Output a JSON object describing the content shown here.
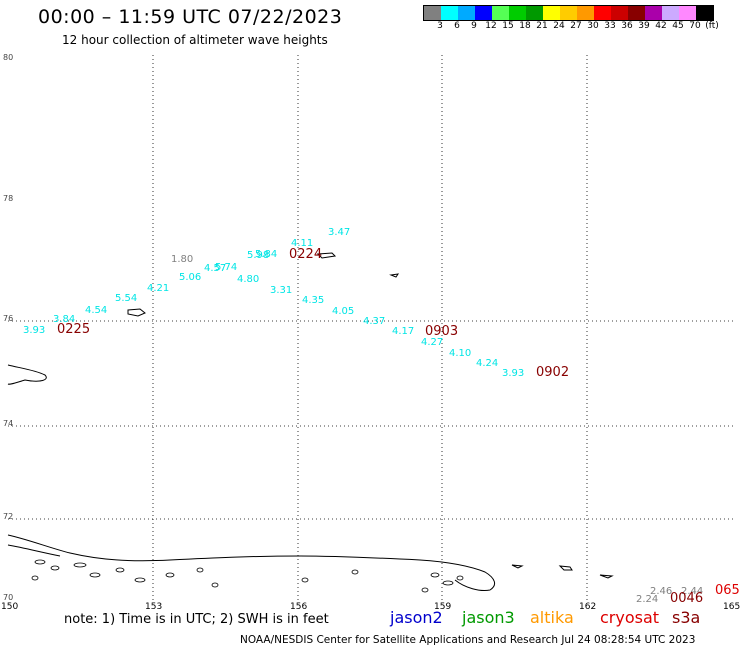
{
  "header": {
    "title": "00:00 – 11:59 UTC 07/22/2023",
    "subtitle": "12 hour collection of altimeter wave heights"
  },
  "colorbar": {
    "colors": [
      "#808080",
      "#00ffff",
      "#00aaff",
      "#0000ff",
      "#55ff55",
      "#00cc00",
      "#009900",
      "#ffff00",
      "#ffcc00",
      "#ff9900",
      "#ff0000",
      "#cc0000",
      "#880000",
      "#aa00aa",
      "#ccaaff",
      "#ff88ff",
      "#000000"
    ],
    "labels": [
      "3",
      "6",
      "9",
      "12",
      "15",
      "18",
      "21",
      "24",
      "27",
      "30",
      "33",
      "36",
      "39",
      "42",
      "45",
      "70",
      "(ft)"
    ]
  },
  "map": {
    "lat_labels": [
      "80",
      "78",
      "76",
      "74",
      "72",
      "70"
    ],
    "lon_labels": [
      "150",
      "153",
      "156",
      "159",
      "162",
      "165"
    ]
  },
  "observations": {
    "cyan_values": [
      {
        "text": "3.47",
        "color": "#00e5e5"
      },
      {
        "text": "4.11",
        "color": "#00e5e5"
      },
      {
        "text": "5.84",
        "color": "#00e5e5"
      },
      {
        "text": "5.98",
        "color": "#00e5e5"
      },
      {
        "text": "5.74",
        "color": "#00e5e5"
      },
      {
        "text": "4.57",
        "color": "#00e5e5"
      },
      {
        "text": "5.06",
        "color": "#00e5e5"
      },
      {
        "text": "4.80",
        "color": "#00e5e5"
      },
      {
        "text": "4.21",
        "color": "#00e5e5"
      },
      {
        "text": "3.31",
        "color": "#00e5e5"
      },
      {
        "text": "5.54",
        "color": "#00e5e5"
      },
      {
        "text": "4.54",
        "color": "#00e5e5"
      },
      {
        "text": "3.84",
        "color": "#00e5e5"
      },
      {
        "text": "3.93",
        "color": "#00e5e5"
      },
      {
        "text": "4.35",
        "color": "#00e5e5"
      },
      {
        "text": "4.05",
        "color": "#00e5e5"
      },
      {
        "text": "4.37",
        "color": "#00e5e5"
      },
      {
        "text": "4.17",
        "color": "#00e5e5"
      },
      {
        "text": "4.27",
        "color": "#00e5e5"
      },
      {
        "text": "4.10",
        "color": "#00e5e5"
      },
      {
        "text": "4.24",
        "color": "#00e5e5"
      },
      {
        "text": "3.93",
        "color": "#00e5e5"
      }
    ],
    "gray_values": [
      {
        "text": "1.80",
        "color": "#808080"
      },
      {
        "text": "2.46",
        "color": "#808080"
      },
      {
        "text": "2.44",
        "color": "#808080"
      },
      {
        "text": "2.24",
        "color": "#808080"
      }
    ],
    "time_labels": [
      {
        "text": "0224",
        "color": "#880000"
      },
      {
        "text": "0225",
        "color": "#880000"
      },
      {
        "text": "0903",
        "color": "#880000"
      },
      {
        "text": "0902",
        "color": "#880000"
      },
      {
        "text": "0046",
        "color": "#880000"
      },
      {
        "text": "065",
        "color": "#dd0000"
      }
    ]
  },
  "footer": {
    "note": "note: 1) Time is in UTC; 2) SWH is in feet",
    "satellites": [
      "jason2",
      "jason3",
      "altika",
      "cryosat",
      "s3a"
    ],
    "credit": "NOAA/NESDIS Center for Satellite Applications and Research    Jul 24 08:28:54 UTC 2023"
  }
}
